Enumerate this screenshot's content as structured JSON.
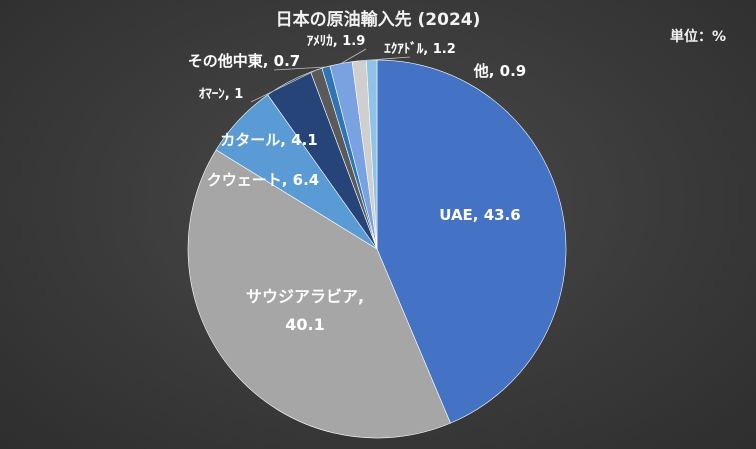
{
  "chart_data": {
    "type": "pie",
    "title": "日本の原油輸入先 (2024)",
    "unit_label": "単位：%",
    "slices": [
      {
        "label": "UAE",
        "value": 43.6,
        "color": "#4472c4",
        "text": "UAE, 43.6"
      },
      {
        "label": "サウジアラビア",
        "value": 40.1,
        "color": "#a6a6a6",
        "text": "サウジアラビア,",
        "text2": "40.1"
      },
      {
        "label": "クウェート",
        "value": 6.4,
        "color": "#5b9bd5",
        "text": "クウェート, 6.4"
      },
      {
        "label": "カタール",
        "value": 4.1,
        "color": "#264478",
        "text": "カタール, 4.1"
      },
      {
        "label": "ｵﾏｰﾝ",
        "value": 1,
        "color": "#5a5a5a",
        "text": "ｵﾏｰﾝ, 1"
      },
      {
        "label": "その他中東",
        "value": 0.7,
        "color": "#2e75b6",
        "text": "その他中東, 0.7"
      },
      {
        "label": "ｱﾒﾘｶ",
        "value": 1.9,
        "color": "#7aa1e0",
        "text": "ｱﾒﾘｶ, 1.9"
      },
      {
        "label": "ｴｸｱﾄﾞﾙ",
        "value": 1.2,
        "color": "#cfcfcf",
        "text": "ｴｸｱﾄﾞﾙ, 1.2"
      },
      {
        "label": "他",
        "value": 0.9,
        "color": "#8fc3e8",
        "text": "他, 0.9"
      }
    ]
  }
}
